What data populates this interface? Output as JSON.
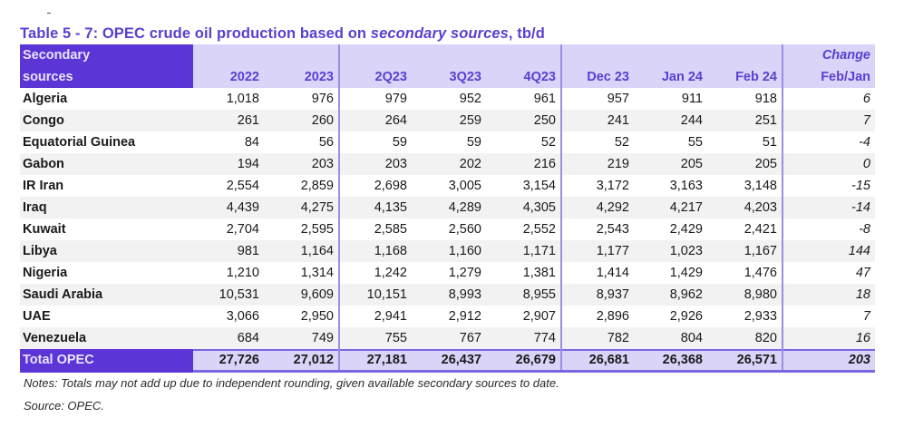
{
  "title": {
    "prefix": "Table 5 - 7: OPEC crude oil production based on ",
    "italic": "secondary sources",
    "suffix": ", tb/d"
  },
  "header": {
    "label_line1": "Secondary",
    "label_line2": "sources",
    "columns": [
      "2022",
      "2023",
      "2Q23",
      "3Q23",
      "4Q23",
      "Dec 23",
      "Jan 24",
      "Feb 24"
    ],
    "change_line1": "Change",
    "change_line2": "Feb/Jan"
  },
  "rows": [
    {
      "name": "Algeria",
      "values": [
        "1,018",
        "976",
        "979",
        "952",
        "961",
        "957",
        "911",
        "918"
      ],
      "change": "6"
    },
    {
      "name": "Congo",
      "values": [
        "261",
        "260",
        "264",
        "259",
        "250",
        "241",
        "244",
        "251"
      ],
      "change": "7"
    },
    {
      "name": "Equatorial Guinea",
      "values": [
        "84",
        "56",
        "59",
        "59",
        "52",
        "52",
        "55",
        "51"
      ],
      "change": "-4"
    },
    {
      "name": "Gabon",
      "values": [
        "194",
        "203",
        "203",
        "202",
        "216",
        "219",
        "205",
        "205"
      ],
      "change": "0"
    },
    {
      "name": "IR Iran",
      "values": [
        "2,554",
        "2,859",
        "2,698",
        "3,005",
        "3,154",
        "3,172",
        "3,163",
        "3,148"
      ],
      "change": "-15"
    },
    {
      "name": "Iraq",
      "values": [
        "4,439",
        "4,275",
        "4,135",
        "4,289",
        "4,305",
        "4,292",
        "4,217",
        "4,203"
      ],
      "change": "-14"
    },
    {
      "name": "Kuwait",
      "values": [
        "2,704",
        "2,595",
        "2,585",
        "2,560",
        "2,552",
        "2,543",
        "2,429",
        "2,421"
      ],
      "change": "-8"
    },
    {
      "name": "Libya",
      "values": [
        "981",
        "1,164",
        "1,168",
        "1,160",
        "1,171",
        "1,177",
        "1,023",
        "1,167"
      ],
      "change": "144"
    },
    {
      "name": "Nigeria",
      "values": [
        "1,210",
        "1,314",
        "1,242",
        "1,279",
        "1,381",
        "1,414",
        "1,429",
        "1,476"
      ],
      "change": "47"
    },
    {
      "name": "Saudi Arabia",
      "values": [
        "10,531",
        "9,609",
        "10,151",
        "8,993",
        "8,955",
        "8,937",
        "8,962",
        "8,980"
      ],
      "change": "18"
    },
    {
      "name": "UAE",
      "values": [
        "3,066",
        "2,950",
        "2,941",
        "2,912",
        "2,907",
        "2,896",
        "2,926",
        "2,933"
      ],
      "change": "7"
    },
    {
      "name": "Venezuela",
      "values": [
        "684",
        "749",
        "755",
        "767",
        "774",
        "782",
        "804",
        "820"
      ],
      "change": "16"
    }
  ],
  "total": {
    "name": "Total  OPEC",
    "values": [
      "27,726",
      "27,012",
      "27,181",
      "26,437",
      "26,679",
      "26,681",
      "26,368",
      "26,571"
    ],
    "change": "203"
  },
  "notes": "Notes: Totals may not add up due to independent rounding, given available secondary sources to date.",
  "source": "Source: OPEC.",
  "colors": {
    "accent": "#5b35d5",
    "header_bg": "#dad4f8",
    "title": "#5b3fd0",
    "alt_row": "#f2f2f2"
  }
}
